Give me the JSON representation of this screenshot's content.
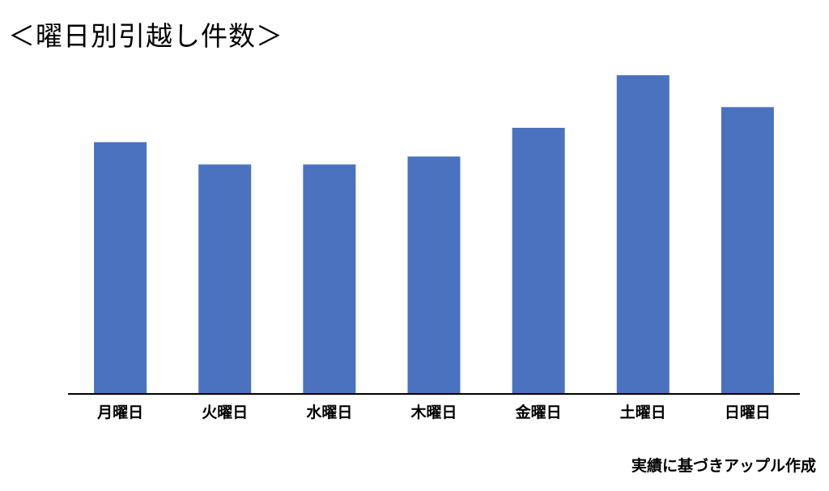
{
  "chart_data": {
    "type": "bar",
    "title": "＜曜日別引越し件数＞",
    "categories": [
      "月曜日",
      "火曜日",
      "水曜日",
      "木曜日",
      "金曜日",
      "土曜日",
      "日曜日"
    ],
    "values": [
      79,
      72,
      72,
      74.5,
      83.5,
      100,
      90
    ],
    "ylim": [
      0,
      100
    ],
    "color": "#4a72be",
    "grid": false,
    "legend": "none",
    "xlabel": "",
    "ylabel": ""
  },
  "footnote": "実績に基づきアップル作成"
}
